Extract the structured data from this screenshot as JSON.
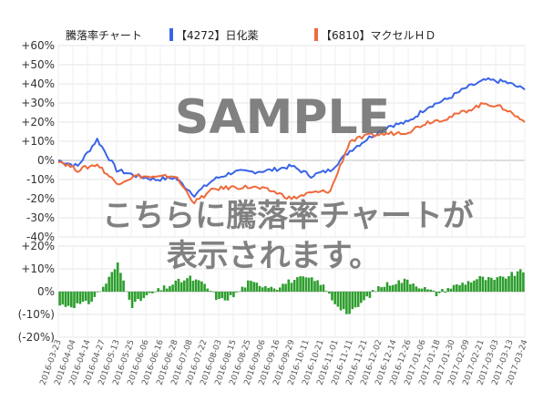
{
  "legend": {
    "title": "騰落率チャート",
    "series1_label": "【4272】日化薬",
    "series2_label": "【6810】マクセルＨＤ"
  },
  "watermark": {
    "line1": "SAMPLE",
    "line2": "こちらに騰落率チャートが",
    "line3": "表示されます。"
  },
  "colors": {
    "series1": "#3a64e8",
    "series2": "#ef6a3c",
    "diff_bar": "#2e9e2e"
  },
  "chart_data": [
    {
      "type": "line",
      "title": "騰落率チャート",
      "ylim": [
        -40,
        60
      ],
      "yticks": [
        -40,
        -30,
        -20,
        -10,
        0,
        10,
        20,
        30,
        40,
        50,
        60
      ],
      "ytick_labels": [
        "-40%",
        "-30%",
        "-20%",
        "-10%",
        "0%",
        "+10%",
        "+20%",
        "+30%",
        "+40%",
        "+50%",
        "+60%"
      ],
      "grid": true,
      "legend_position": "top",
      "x": [
        "2016-03-23",
        "2016-04-12",
        "2016-05-02",
        "2016-05-16",
        "2016-06-01",
        "2016-06-15",
        "2016-06-30",
        "2016-07-14",
        "2016-07-29",
        "2016-08-15",
        "2016-08-29",
        "2016-09-13",
        "2016-09-27",
        "2016-10-12",
        "2016-10-26",
        "2016-11-10",
        "2016-11-24",
        "2016-12-08",
        "2016-12-22",
        "2017-01-11",
        "2017-01-25",
        "2017-02-08",
        "2017-02-22",
        "2017-03-08",
        "2017-03-24"
      ],
      "series": [
        {
          "name": "【4272】日化薬",
          "values": [
            0,
            -3,
            11,
            -5,
            -8,
            -10,
            -9,
            -18,
            -10,
            -6,
            -6,
            -5,
            -3,
            -8,
            -5,
            5,
            12,
            18,
            20,
            28,
            32,
            38,
            42,
            41,
            37
          ]
        },
        {
          "name": "【6810】マクセルＨＤ",
          "values": [
            0,
            -5,
            -2,
            -12,
            -8,
            -9,
            -8,
            -22,
            -15,
            -14,
            -14,
            -16,
            -20,
            -17,
            -16,
            10,
            13,
            14,
            15,
            20,
            22,
            26,
            30,
            27,
            20
          ]
        }
      ]
    },
    {
      "type": "bar",
      "title": "",
      "ylim": [
        -20,
        20
      ],
      "yticks": [
        -20,
        -10,
        0,
        10,
        20
      ],
      "ytick_labels": [
        "(-20%)",
        "(-10%)",
        "0%",
        "+10%",
        "+20%"
      ],
      "grid": true,
      "x_tick_labels": [
        "2016-03-23",
        "2016-04-04",
        "2016-04-14",
        "2016-04-27",
        "2016-05-13",
        "2016-05-25",
        "2016-06-06",
        "2016-06-16",
        "2016-06-28",
        "2016-07-08",
        "2016-07-22",
        "2016-08-03",
        "2016-08-15",
        "2016-08-25",
        "2016-09-06",
        "2016-09-16",
        "2016-09-29",
        "2016-10-11",
        "2016-10-21",
        "2016-11-01",
        "2016-11-11",
        "2016-11-21",
        "2016-12-02",
        "2016-12-14",
        "2016-12-26",
        "2017-01-06",
        "2017-01-18",
        "2017-01-30",
        "2017-02-09",
        "2017-02-21",
        "2017-03-03",
        "2017-03-13",
        "2017-03-24"
      ],
      "series": [
        {
          "name": "",
          "values": [
            -6,
            -6,
            -5,
            2,
            12,
            -6,
            -2,
            1,
            4,
            6,
            3,
            -4,
            -2,
            4,
            3,
            2,
            5,
            6,
            4,
            -5,
            -10,
            -4,
            2,
            4,
            5,
            2,
            -1,
            2,
            4,
            6,
            5,
            7,
            9
          ]
        }
      ]
    }
  ]
}
